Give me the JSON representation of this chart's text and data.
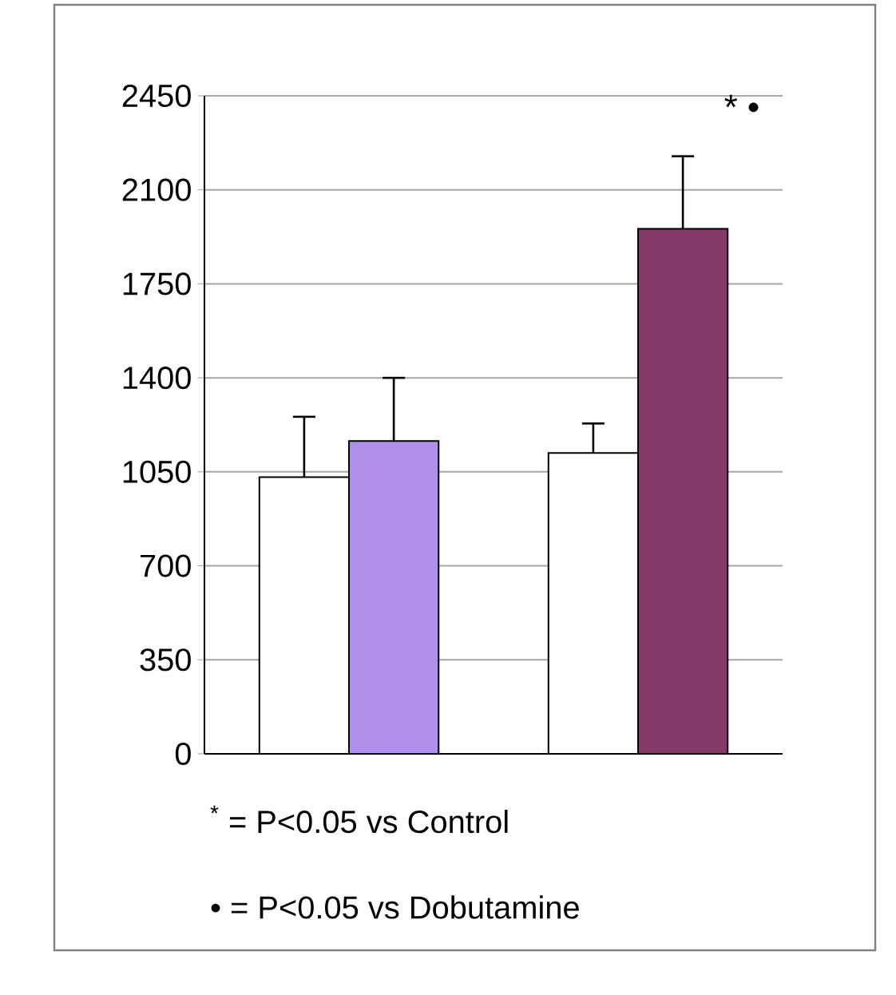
{
  "chart_data": {
    "type": "bar",
    "categories": [
      null,
      null
    ],
    "series": [
      {
        "color": "#ffffff",
        "values": [
          1030,
          1120
        ],
        "errors": [
          [
            1030,
            1255
          ],
          [
            1120,
            1230
          ]
        ]
      },
      {
        "colors": [
          "#b08fec",
          "#843a68"
        ],
        "values": [
          1165,
          1955
        ],
        "errors": [
          [
            1165,
            1400
          ],
          [
            1955,
            2225
          ]
        ]
      }
    ],
    "ylim": [
      0,
      2450
    ],
    "yticks": [
      0,
      350,
      700,
      1050,
      1400,
      1750,
      2100,
      2450
    ],
    "grid": "y",
    "annotations": [
      "* •",
      "$^{*}$ = P<0.05 vs Control",
      "• = P<0.05 vs Dobutamine"
    ]
  }
}
